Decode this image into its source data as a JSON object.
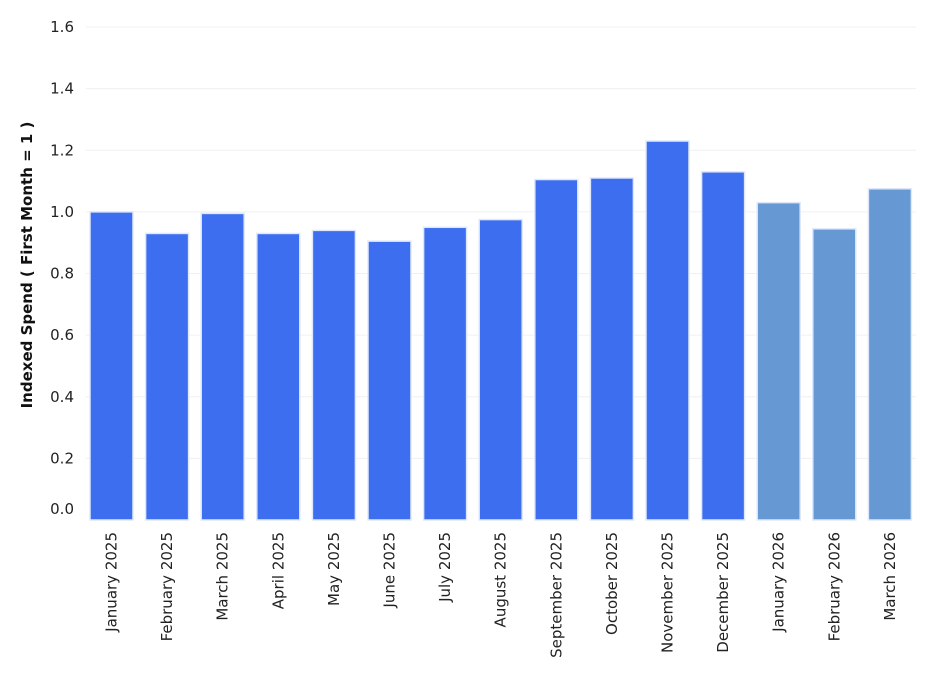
{
  "chart_data": {
    "type": "bar",
    "title": "",
    "xlabel": "",
    "ylabel": "Indexed Spend ( First Month = 1 )",
    "ylim": [
      0,
      1.6
    ],
    "yticks": [
      "0.0",
      "0.2",
      "0.4",
      "0.6",
      "0.8",
      "1.0",
      "1.2",
      "1.4",
      "1.6"
    ],
    "grid": true,
    "legend": "none",
    "categories": [
      "January 2025",
      "February 2025",
      "March 2025",
      "April 2025",
      "May 2025",
      "June 2025",
      "July 2025",
      "August 2025",
      "September 2025",
      "October 2025",
      "November 2025",
      "December 2025",
      "January 2026",
      "February 2026",
      "March 2026"
    ],
    "values": [
      1.0,
      0.93,
      0.995,
      0.93,
      0.94,
      0.905,
      0.95,
      0.975,
      1.105,
      1.11,
      1.23,
      1.13,
      1.03,
      0.945,
      1.075
    ],
    "colors": {
      "actual": "#3d6ef0",
      "projected": "#6699d4",
      "bar_outline": "#dfe8fb"
    },
    "projected_from_index": 12
  }
}
